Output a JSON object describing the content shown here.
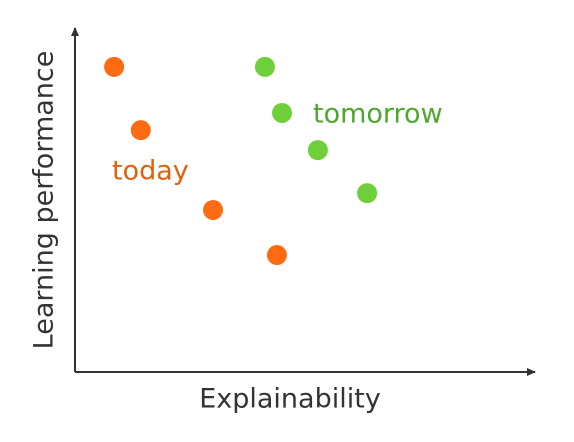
{
  "chart_data": {
    "type": "scatter",
    "x_label": "Explainability",
    "y_label": "Learning performance",
    "xlim": [
      0,
      100
    ],
    "ylim": [
      0,
      100
    ],
    "series": [
      {
        "name": "today",
        "color": "#ff6a13",
        "x": [
          8.5,
          14.3,
          30,
          43.9
        ],
        "values": [
          88.7,
          70.3,
          47.1,
          34
        ]
      },
      {
        "name": "tomorrow",
        "color": "#6fcf3a",
        "x": [
          41.3,
          45,
          52.8,
          63.5
        ],
        "values": [
          88.7,
          75.3,
          64.5,
          52
        ]
      }
    ]
  }
}
